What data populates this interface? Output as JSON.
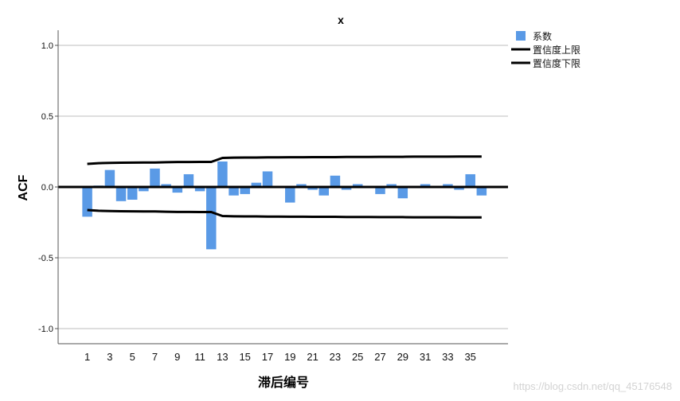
{
  "chart_data": {
    "type": "bar",
    "title": "x",
    "xlabel": "滞后编号",
    "ylabel": "ACF",
    "ylim": [
      -1.1,
      1.1
    ],
    "yticks": [
      "1.0",
      "0.5",
      "0.0",
      "-0.5",
      "-1.0"
    ],
    "ytick_values": [
      1.0,
      0.5,
      0.0,
      -0.5,
      -1.0
    ],
    "xtick_labels": [
      "1",
      "3",
      "5",
      "7",
      "9",
      "11",
      "13",
      "15",
      "17",
      "19",
      "21",
      "23",
      "25",
      "27",
      "29",
      "31",
      "33",
      "35"
    ],
    "lags": [
      1,
      2,
      3,
      4,
      5,
      6,
      7,
      8,
      9,
      10,
      11,
      12,
      13,
      14,
      15,
      16,
      17,
      18,
      19,
      20,
      21,
      22,
      23,
      24,
      25,
      26,
      27,
      28,
      29,
      30,
      31,
      32,
      33,
      34,
      35,
      36
    ],
    "grid": true,
    "legend_position": "top-right",
    "series": [
      {
        "name": "系数",
        "kind": "bar",
        "color": "#5a9ae6",
        "values": [
          -0.21,
          0.01,
          0.12,
          -0.1,
          -0.09,
          -0.03,
          0.13,
          0.02,
          -0.04,
          0.09,
          -0.03,
          -0.44,
          0.18,
          -0.06,
          -0.05,
          0.03,
          0.11,
          0.0,
          -0.11,
          0.02,
          -0.02,
          -0.06,
          0.08,
          -0.02,
          0.02,
          0.0,
          -0.05,
          0.02,
          -0.08,
          0.0,
          0.02,
          0.0,
          0.02,
          -0.02,
          0.09,
          -0.06
        ]
      },
      {
        "name": "置信度上限",
        "kind": "line",
        "color": "#000000",
        "values": [
          0.163,
          0.168,
          0.17,
          0.171,
          0.172,
          0.173,
          0.173,
          0.175,
          0.176,
          0.176,
          0.177,
          0.177,
          0.205,
          0.207,
          0.208,
          0.208,
          0.209,
          0.209,
          0.21,
          0.21,
          0.211,
          0.211,
          0.211,
          0.212,
          0.212,
          0.212,
          0.213,
          0.213,
          0.213,
          0.214,
          0.214,
          0.214,
          0.214,
          0.215,
          0.215,
          0.215
        ]
      },
      {
        "name": "置信度下限",
        "kind": "line",
        "color": "#000000",
        "values": [
          -0.163,
          -0.168,
          -0.17,
          -0.171,
          -0.172,
          -0.173,
          -0.173,
          -0.175,
          -0.176,
          -0.176,
          -0.177,
          -0.177,
          -0.205,
          -0.207,
          -0.208,
          -0.208,
          -0.209,
          -0.209,
          -0.21,
          -0.21,
          -0.211,
          -0.211,
          -0.211,
          -0.212,
          -0.212,
          -0.212,
          -0.213,
          -0.213,
          -0.213,
          -0.214,
          -0.214,
          -0.214,
          -0.214,
          -0.215,
          -0.215,
          -0.215
        ]
      }
    ]
  },
  "watermark": "https://blog.csdn.net/qq_45176548"
}
